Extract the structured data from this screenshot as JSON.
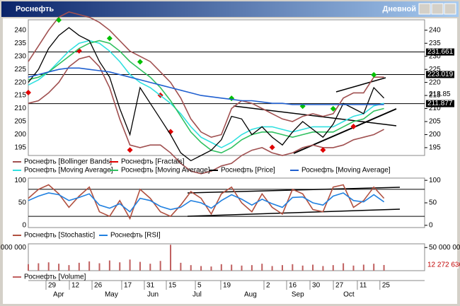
{
  "window": {
    "title": "Роснефть",
    "mode": "Дневной"
  },
  "chart_data": [
    {
      "type": "line",
      "xlim": [
        0,
        39
      ],
      "ylim": [
        192,
        244
      ],
      "yticks": [
        195,
        200,
        205,
        210,
        215,
        220,
        225,
        230,
        235,
        240
      ],
      "levels": [
        231.661,
        223.019,
        211.877
      ],
      "last_price": 213.85,
      "series": [
        {
          "name": "Роснефть [Bollinger Bands]",
          "color": "#a05050",
          "upper": [
            228,
            234,
            240,
            245,
            247,
            246,
            245,
            243,
            240,
            236,
            232,
            230,
            228,
            224,
            220,
            214,
            206,
            201,
            199,
            200,
            210,
            213,
            212,
            210,
            208,
            206,
            205,
            207,
            208,
            207,
            208,
            214,
            216,
            216,
            222,
            222
          ],
          "lower": [
            212,
            213,
            216,
            220,
            226,
            229,
            230,
            226,
            218,
            206,
            196,
            195,
            196,
            196,
            193,
            189,
            186,
            185,
            186,
            188,
            189,
            192,
            194,
            195,
            193,
            192,
            193,
            195,
            196,
            195,
            195,
            196,
            198,
            199,
            200,
            202
          ]
        },
        {
          "name": "Роснефть [Fractals]",
          "color": "#e00000",
          "up_color": "#00c000",
          "up": [
            [
              3,
              242
            ],
            [
              8,
              235
            ],
            [
              11,
              226
            ],
            [
              20,
              212
            ],
            [
              27,
              209
            ],
            [
              30,
              208
            ],
            [
              34,
              221
            ]
          ],
          "down": [
            [
              0,
              218
            ],
            [
              5,
              234
            ],
            [
              10,
              196
            ],
            [
              13,
              217
            ],
            [
              14,
              203
            ],
            [
              24,
              197
            ],
            [
              29,
              196
            ],
            [
              32,
              205
            ]
          ]
        },
        {
          "name": "Роснефть [Moving Average]",
          "color": "#30e0e0",
          "values": [
            219,
            221,
            224,
            228,
            232,
            235,
            236,
            235,
            232,
            228,
            223,
            220,
            218,
            215,
            212,
            208,
            203,
            199,
            197,
            195,
            197,
            200,
            202,
            203,
            203,
            202,
            201,
            202,
            203,
            203,
            203,
            205,
            207,
            208,
            211,
            212
          ]
        },
        {
          "name": "Роснефть [Moving Average]",
          "color": "#30c060",
          "values": [
            221,
            222,
            224,
            227,
            230,
            233,
            235,
            236,
            235,
            232,
            228,
            225,
            222,
            218,
            213,
            207,
            201,
            197,
            194,
            193,
            195,
            198,
            200,
            201,
            201,
            200,
            199,
            200,
            201,
            201,
            201,
            203,
            205,
            206,
            209,
            210
          ]
        },
        {
          "name": "Роснефть [Price]",
          "color": "#000000",
          "values": [
            220,
            225,
            233,
            238,
            241,
            238,
            236,
            228,
            222,
            210,
            200,
            218,
            212,
            206,
            200,
            193,
            190,
            192,
            194,
            198,
            207,
            206,
            200,
            203,
            199,
            196,
            201,
            205,
            202,
            199,
            204,
            212,
            210,
            208,
            218,
            214
          ]
        },
        {
          "name": "Роснефть [Moving Average]",
          "color": "#2060d0",
          "values": [
            222,
            223,
            224,
            225,
            225.5,
            225.5,
            225,
            224.5,
            224,
            223,
            222,
            221,
            220,
            219,
            218,
            217,
            216,
            215,
            214.5,
            214,
            213.5,
            213,
            213,
            212.5,
            212,
            212,
            211.5,
            211.5,
            211.5,
            211.5,
            211.5,
            211.5,
            211.5,
            211.5,
            211.5,
            211.5
          ]
        }
      ]
    },
    {
      "type": "line",
      "ylim": [
        -5,
        105
      ],
      "yticks": [
        0,
        50,
        100
      ],
      "levels": [
        80,
        20
      ],
      "series": [
        {
          "name": "Роснефть [Stochastic]",
          "color": "#b05040",
          "values": [
            60,
            80,
            90,
            70,
            40,
            65,
            85,
            30,
            20,
            55,
            15,
            80,
            60,
            30,
            20,
            45,
            75,
            60,
            25,
            70,
            85,
            50,
            30,
            70,
            40,
            25,
            80,
            70,
            35,
            30,
            85,
            90,
            40,
            55,
            85,
            60
          ]
        },
        {
          "name": "Роснефть [RSI]",
          "color": "#2080e0",
          "values": [
            55,
            65,
            72,
            68,
            55,
            62,
            70,
            45,
            38,
            48,
            30,
            60,
            55,
            42,
            35,
            40,
            55,
            50,
            38,
            55,
            68,
            58,
            45,
            58,
            48,
            40,
            62,
            63,
            50,
            45,
            65,
            72,
            55,
            52,
            68,
            52
          ]
        }
      ]
    },
    {
      "type": "bar",
      "ylim": [
        0,
        58000000
      ],
      "yticks": [
        {
          "value": 50000000,
          "label": "50 000 000"
        }
      ],
      "last_value": 12272636,
      "last_value_label": "12 272 636",
      "series": [
        {
          "name": "Роснефть [Volume]",
          "color": "#c06060",
          "values": [
            14000000,
            16000000,
            18000000,
            15000000,
            12000000,
            17000000,
            20000000,
            16000000,
            22000000,
            18000000,
            24000000,
            19000000,
            15000000,
            21000000,
            56000000,
            17000000,
            12000000,
            10000000,
            9000000,
            14000000,
            13000000,
            11000000,
            12000000,
            15000000,
            10000000,
            12000000,
            14000000,
            11000000,
            13000000,
            10000000,
            12000000,
            16000000,
            11000000,
            13000000,
            15000000,
            12272636
          ]
        }
      ]
    }
  ],
  "dates": [
    {
      "value": 1.74,
      "label": "29"
    },
    {
      "value": 4.04,
      "label": "12"
    },
    {
      "value": 6.27,
      "label": "26"
    },
    {
      "value": 9.19,
      "label": "17"
    },
    {
      "value": 11.42,
      "label": "31"
    },
    {
      "value": 13.58,
      "label": "15"
    },
    {
      "value": 16.44,
      "label": "5"
    },
    {
      "value": 18.94,
      "label": "19"
    },
    {
      "value": 23.19,
      "label": "2"
    },
    {
      "value": 25.42,
      "label": "16"
    },
    {
      "value": 27.72,
      "label": "30"
    },
    {
      "value": 30.02,
      "label": "27"
    },
    {
      "value": 32.38,
      "label": "11"
    },
    {
      "value": 34.6,
      "label": "25"
    }
  ],
  "months": [
    {
      "value": 2.44,
      "label": "Apr"
    },
    {
      "value": 7.52,
      "label": "May"
    },
    {
      "value": 11.7,
      "label": "Jun"
    },
    {
      "value": 16.16,
      "label": "Jul"
    },
    {
      "value": 21.24,
      "label": "Aug"
    },
    {
      "value": 25.9,
      "label": "Sep"
    },
    {
      "value": 31.0,
      "label": "Oct"
    }
  ]
}
